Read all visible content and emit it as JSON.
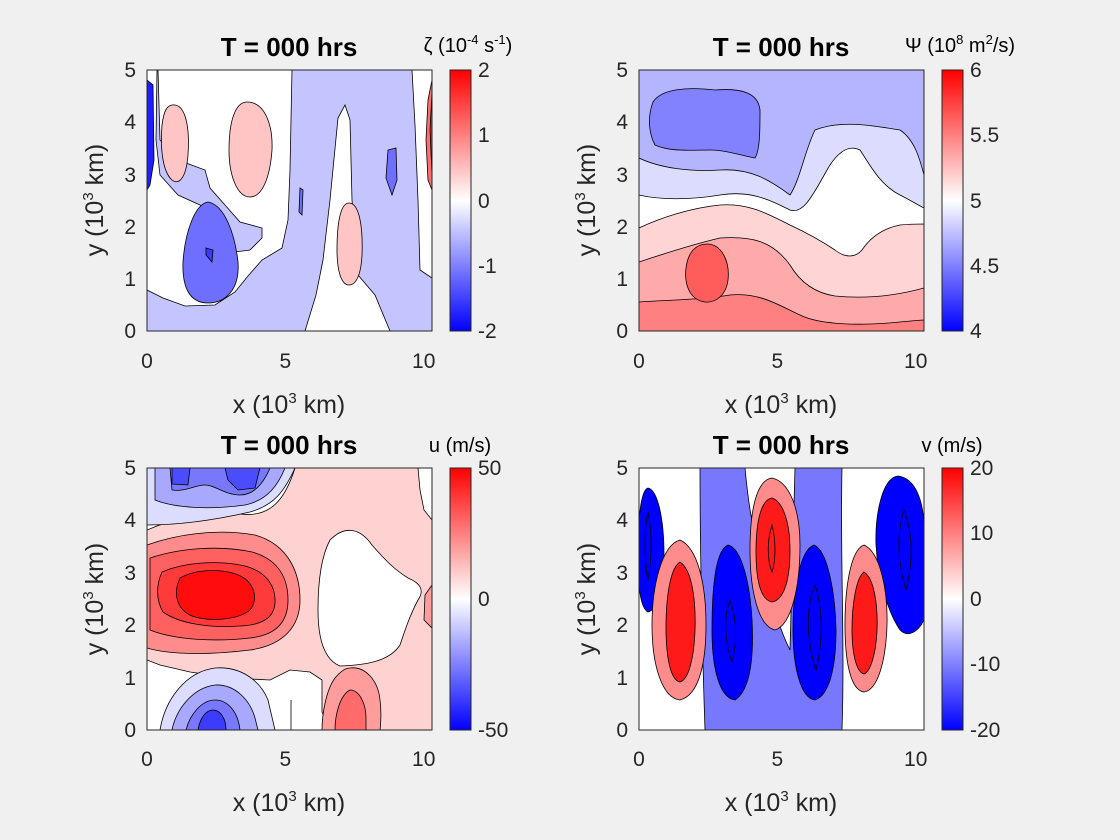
{
  "chart_data": [
    {
      "type": "contour",
      "title": "T = 000 hrs",
      "colorbar": {
        "label_pre": "ζ (10",
        "label_exp": "-4",
        "label_mid": " s",
        "label_exp2": "-1",
        "label_post": ")",
        "lim": [
          -2,
          2
        ],
        "ticks": [
          "2",
          "1",
          "0",
          "-1",
          "-2"
        ],
        "tick_values": [
          2,
          1,
          0,
          -1,
          -2
        ]
      },
      "xlabel_pre": "x (10",
      "xlabel_exp": "3",
      "xlabel_post": " km)",
      "ylabel_pre": "y (10",
      "ylabel_exp": "3",
      "ylabel_post": " km)",
      "xlim": [
        0,
        10.3
      ],
      "ylim": [
        0,
        5
      ],
      "xticks": [
        "0",
        "5",
        "10"
      ],
      "xtick_values": [
        0,
        5,
        10
      ],
      "yticks": [
        "0",
        "1",
        "2",
        "3",
        "4",
        "5"
      ],
      "ytick_values": [
        0,
        1,
        2,
        3,
        4,
        5
      ],
      "colormap": "blue-white-red"
    },
    {
      "type": "contour",
      "title": "T = 000 hrs",
      "colorbar": {
        "label_pre": "Ψ (10",
        "label_exp": "8",
        "label_mid": " m",
        "label_exp2": "2",
        "label_post": "/s)",
        "lim": [
          4,
          6
        ],
        "ticks": [
          "6",
          "5.5",
          "5",
          "4.5",
          "4"
        ],
        "tick_values": [
          6,
          5.5,
          5,
          4.5,
          4
        ]
      },
      "xlabel_pre": "x (10",
      "xlabel_exp": "3",
      "xlabel_post": " km)",
      "ylabel_pre": "y (10",
      "ylabel_exp": "3",
      "ylabel_post": " km)",
      "xlim": [
        0,
        10.3
      ],
      "ylim": [
        0,
        5
      ],
      "xticks": [
        "0",
        "5",
        "10"
      ],
      "xtick_values": [
        0,
        5,
        10
      ],
      "yticks": [
        "0",
        "1",
        "2",
        "3",
        "4",
        "5"
      ],
      "ytick_values": [
        0,
        1,
        2,
        3,
        4,
        5
      ],
      "colormap": "blue-white-red"
    },
    {
      "type": "contour",
      "title": "T = 000 hrs",
      "colorbar": {
        "label_pre": "u (m/s)",
        "label_exp": "",
        "label_mid": "",
        "label_exp2": "",
        "label_post": "",
        "lim": [
          -50,
          50
        ],
        "ticks": [
          "50",
          "0",
          "-50"
        ],
        "tick_values": [
          50,
          0,
          -50
        ]
      },
      "xlabel_pre": "x (10",
      "xlabel_exp": "3",
      "xlabel_post": " km)",
      "ylabel_pre": "y (10",
      "ylabel_exp": "3",
      "ylabel_post": " km)",
      "xlim": [
        0,
        10.3
      ],
      "ylim": [
        0,
        5
      ],
      "xticks": [
        "0",
        "5",
        "10"
      ],
      "xtick_values": [
        0,
        5,
        10
      ],
      "yticks": [
        "0",
        "1",
        "2",
        "3",
        "4",
        "5"
      ],
      "ytick_values": [
        0,
        1,
        2,
        3,
        4,
        5
      ],
      "colormap": "blue-white-red"
    },
    {
      "type": "contour",
      "title": "T = 000 hrs",
      "colorbar": {
        "label_pre": "v (m/s)",
        "label_exp": "",
        "label_mid": "",
        "label_exp2": "",
        "label_post": "",
        "lim": [
          -20,
          20
        ],
        "ticks": [
          "20",
          "10",
          "0",
          "-10",
          "-20"
        ],
        "tick_values": [
          20,
          10,
          0,
          -10,
          -20
        ]
      },
      "xlabel_pre": "x (10",
      "xlabel_exp": "3",
      "xlabel_post": " km)",
      "ylabel_pre": "y (10",
      "ylabel_exp": "3",
      "ylabel_post": " km)",
      "xlim": [
        0,
        10.3
      ],
      "ylim": [
        0,
        5
      ],
      "xticks": [
        "0",
        "5",
        "10"
      ],
      "xtick_values": [
        0,
        5,
        10
      ],
      "yticks": [
        "0",
        "1",
        "2",
        "3",
        "4",
        "5"
      ],
      "ytick_values": [
        0,
        1,
        2,
        3,
        4,
        5
      ],
      "colormap": "blue-white-red"
    }
  ]
}
